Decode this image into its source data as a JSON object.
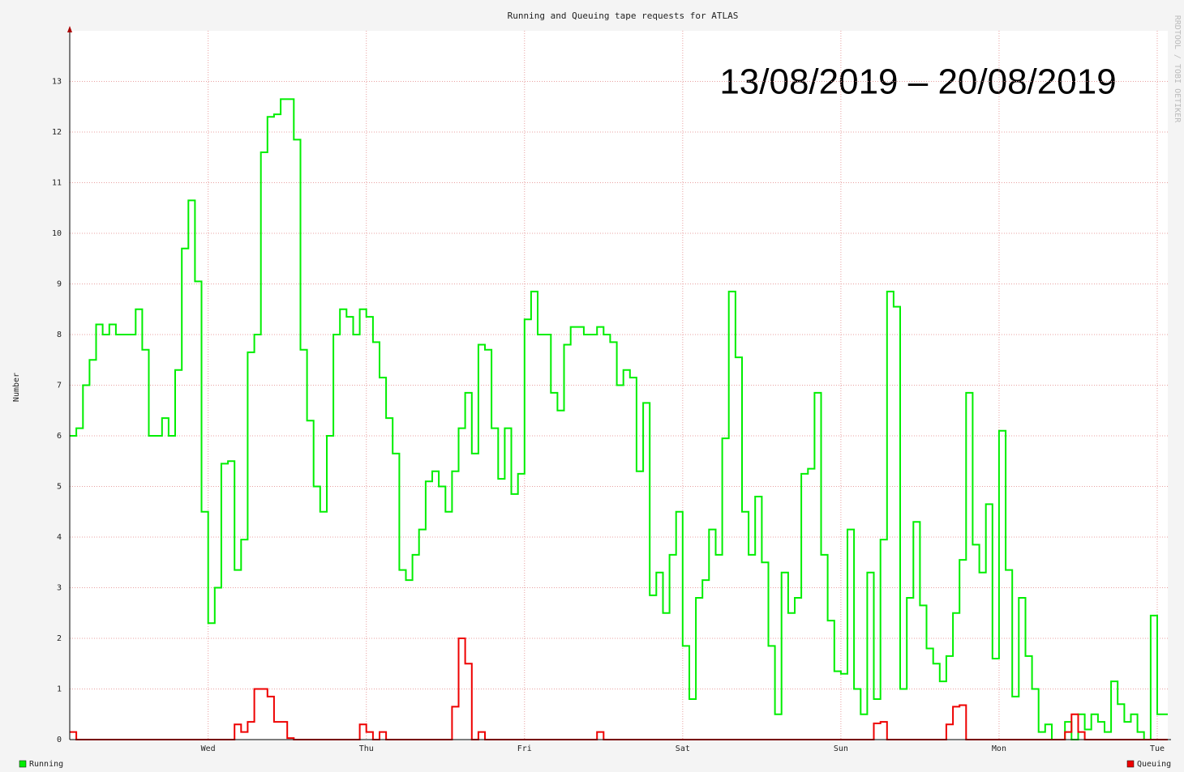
{
  "chart_data": {
    "type": "step",
    "title": "Running and Queuing tape requests for ATLAS",
    "annotation": "13/08/2019 – 20/08/2019",
    "watermark": "RRDTOOL / TOBI OETIKER",
    "ylabel": "Number",
    "x": [
      -21,
      -20,
      -19,
      -18,
      -17,
      -16,
      -15,
      -14,
      -13,
      -12,
      -11,
      -10,
      -9,
      -8,
      -7,
      -6,
      -5,
      -4,
      -3,
      -2,
      -1,
      0,
      1,
      2,
      3,
      4,
      5,
      6,
      7,
      8,
      9,
      10,
      11,
      12,
      13,
      14,
      15,
      16,
      17,
      18,
      19,
      20,
      21,
      22,
      23,
      24,
      25,
      26,
      27,
      28,
      29,
      30,
      31,
      32,
      33,
      34,
      35,
      36,
      37,
      38,
      39,
      40,
      41,
      42,
      43,
      44,
      45,
      46,
      47,
      48,
      49,
      50,
      51,
      52,
      53,
      54,
      55,
      56,
      57,
      58,
      59,
      60,
      61,
      62,
      63,
      64,
      65,
      66,
      67,
      68,
      69,
      70,
      71,
      72,
      73,
      74,
      75,
      76,
      77,
      78,
      79,
      80,
      81,
      82,
      83,
      84,
      85,
      86,
      87,
      88,
      89,
      90,
      91,
      92,
      93,
      94,
      95,
      96,
      97,
      98,
      99,
      100,
      101,
      102,
      103,
      104,
      105,
      106,
      107,
      108,
      109,
      110,
      111,
      112,
      113,
      114,
      115,
      116,
      117,
      118,
      119,
      120,
      121,
      122,
      123,
      124,
      125,
      126,
      127,
      128,
      129,
      130,
      131,
      132,
      133,
      134,
      135,
      136,
      137,
      138,
      139,
      140,
      141,
      142,
      143,
      144
    ],
    "series": [
      {
        "name": "Running",
        "color": "#00ee00",
        "values": [
          6.0,
          6.15,
          7.0,
          7.5,
          8.2,
          8.0,
          8.2,
          8.0,
          8.0,
          8.0,
          8.5,
          7.7,
          6.0,
          6.0,
          6.35,
          6.0,
          7.3,
          9.7,
          10.65,
          9.05,
          4.5,
          2.3,
          3.0,
          5.45,
          5.5,
          3.35,
          3.95,
          7.65,
          8.0,
          11.6,
          12.3,
          12.35,
          12.65,
          12.65,
          11.85,
          7.7,
          6.3,
          5.0,
          4.5,
          6.0,
          8.0,
          8.5,
          8.35,
          8.0,
          8.5,
          8.35,
          7.85,
          7.15,
          6.35,
          5.65,
          3.35,
          3.15,
          3.65,
          4.15,
          5.1,
          5.3,
          5.0,
          4.5,
          5.3,
          6.15,
          6.85,
          5.65,
          7.8,
          7.7,
          6.15,
          5.15,
          6.15,
          4.85,
          5.25,
          8.3,
          8.85,
          8.0,
          8.0,
          6.85,
          6.5,
          7.8,
          8.15,
          8.15,
          8.0,
          8.0,
          8.15,
          8.0,
          7.85,
          7.0,
          7.3,
          7.15,
          5.3,
          6.65,
          2.85,
          3.3,
          2.5,
          3.65,
          4.5,
          1.85,
          0.8,
          2.8,
          3.15,
          4.15,
          3.65,
          5.95,
          8.85,
          7.55,
          4.5,
          3.65,
          4.8,
          3.5,
          1.85,
          0.5,
          3.3,
          2.5,
          2.8,
          5.25,
          5.35,
          6.85,
          3.65,
          2.35,
          1.35,
          1.3,
          4.15,
          1.0,
          0.5,
          3.3,
          0.8,
          3.95,
          8.85,
          8.55,
          1.0,
          2.8,
          4.3,
          2.65,
          1.8,
          1.5,
          1.15,
          1.65,
          2.5,
          3.55,
          6.85,
          3.85,
          3.3,
          4.65,
          1.6,
          6.1,
          3.35,
          0.85,
          2.8,
          1.65,
          1.0,
          0.15,
          0.3,
          0,
          0,
          0.35,
          0,
          0.5,
          0.2,
          0.5,
          0.35,
          0.15,
          1.15,
          0.7,
          0.35,
          0.5,
          0.15,
          0,
          2.45,
          0.5
        ]
      },
      {
        "name": "Queuing",
        "color": "#ee0000",
        "values": [
          0.15,
          0,
          0,
          0,
          0,
          0,
          0,
          0,
          0,
          0,
          0,
          0,
          0,
          0,
          0,
          0,
          0,
          0,
          0,
          0,
          0,
          0,
          0,
          0,
          0,
          0.3,
          0.15,
          0.35,
          1.0,
          1.0,
          0.85,
          0.35,
          0.35,
          0.03,
          0,
          0,
          0,
          0,
          0,
          0,
          0,
          0,
          0,
          0,
          0.3,
          0.15,
          0,
          0.15,
          0,
          0,
          0,
          0,
          0,
          0,
          0,
          0,
          0,
          0,
          0.65,
          2.0,
          1.5,
          0,
          0.15,
          0,
          0,
          0,
          0,
          0,
          0,
          0,
          0,
          0,
          0,
          0,
          0,
          0,
          0,
          0,
          0,
          0,
          0.15,
          0,
          0,
          0,
          0,
          0,
          0,
          0,
          0,
          0,
          0,
          0,
          0,
          0,
          0,
          0,
          0,
          0,
          0,
          0,
          0,
          0,
          0,
          0,
          0,
          0,
          0,
          0,
          0,
          0,
          0,
          0,
          0,
          0,
          0,
          0,
          0,
          0,
          0,
          0,
          0,
          0,
          0.32,
          0.35,
          0,
          0,
          0,
          0,
          0,
          0,
          0,
          0,
          0,
          0.3,
          0.65,
          0.68,
          0,
          0,
          0,
          0,
          0,
          0,
          0,
          0,
          0,
          0,
          0,
          0,
          0,
          0,
          0,
          0.15,
          0.5,
          0.15,
          0,
          0,
          0,
          0,
          0,
          0,
          0,
          0,
          0,
          0,
          0,
          0
        ]
      }
    ],
    "xlim": [
      -21,
      145.6
    ],
    "xticks": [
      {
        "value": 0,
        "label": "Wed"
      },
      {
        "value": 24,
        "label": "Thu"
      },
      {
        "value": 48,
        "label": "Fri"
      },
      {
        "value": 72,
        "label": "Sat"
      },
      {
        "value": 96,
        "label": "Sun"
      },
      {
        "value": 120,
        "label": "Mon"
      },
      {
        "value": 144,
        "label": "Tue"
      }
    ],
    "ylim": [
      0,
      14
    ],
    "yticks": [
      0,
      1,
      2,
      3,
      4,
      5,
      6,
      7,
      8,
      9,
      10,
      11,
      12,
      13
    ],
    "grid": true
  }
}
